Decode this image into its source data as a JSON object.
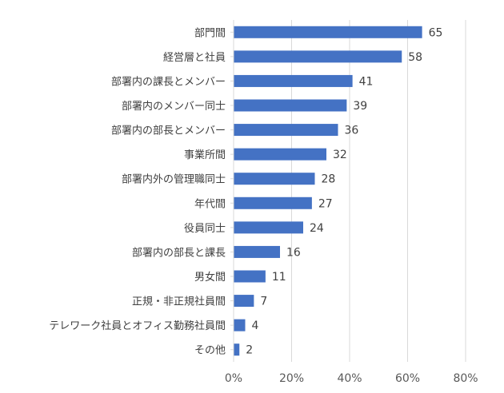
{
  "chart_data": {
    "type": "bar",
    "orientation": "horizontal",
    "categories": [
      "部門間",
      "経営層と社員",
      "部署内の課長とメンバー",
      "部署内のメンバー同士",
      "部署内の部長とメンバー",
      "事業所間",
      "部署内外の管理職同士",
      "年代間",
      "役員同士",
      "部署内の部長と課長",
      "男女間",
      "正規・非正規社員間",
      "テレワーク社員とオフィス勤務社員間",
      "その他"
    ],
    "values": [
      65,
      58,
      41,
      39,
      36,
      32,
      28,
      27,
      24,
      16,
      11,
      7,
      4,
      2
    ],
    "data_labels": [
      "65",
      "58",
      "41",
      "39",
      "36",
      "32",
      "28",
      "27",
      "24",
      "16",
      "11",
      "7",
      "4",
      "2"
    ],
    "x_axis": {
      "range": [
        0,
        80
      ],
      "ticks": [
        0,
        20,
        40,
        60,
        80
      ],
      "tick_labels": [
        "0%",
        "20%",
        "40%",
        "60%",
        "80%"
      ]
    },
    "grid": "vertical",
    "bar_color": "#4472C4",
    "grid_color": "#D9D9D9"
  }
}
